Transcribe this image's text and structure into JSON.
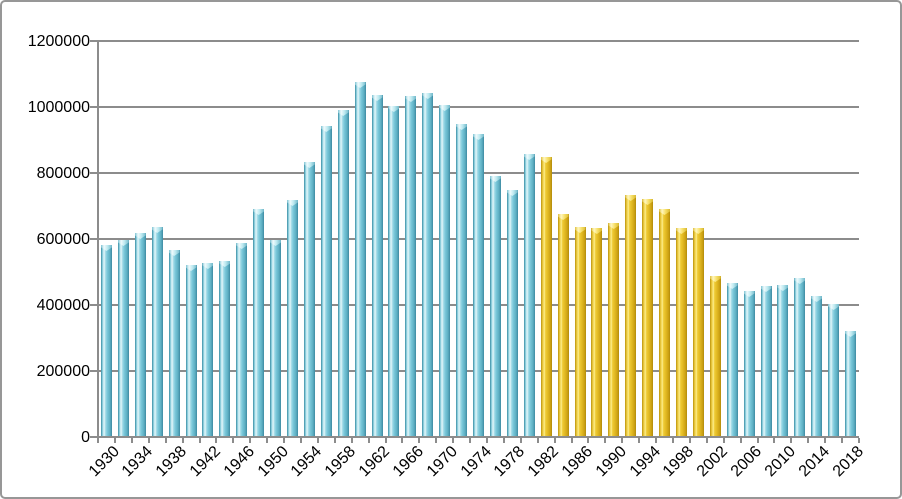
{
  "frame": {
    "background": "#ffffff",
    "border_color": "#979797"
  },
  "chart_data": {
    "type": "bar",
    "title": "",
    "xlabel": "",
    "ylabel": "",
    "x": [
      1930,
      1932,
      1934,
      1936,
      1938,
      1940,
      1942,
      1944,
      1946,
      1948,
      1950,
      1952,
      1954,
      1956,
      1958,
      1960,
      1962,
      1964,
      1966,
      1968,
      1970,
      1972,
      1974,
      1976,
      1978,
      1980,
      1982,
      1984,
      1986,
      1988,
      1990,
      1992,
      1994,
      1996,
      1998,
      2000,
      2002,
      2004,
      2006,
      2008,
      2010,
      2012,
      2014,
      2016,
      2018
    ],
    "values": [
      585000,
      600000,
      620000,
      640000,
      570000,
      525000,
      530000,
      535000,
      590000,
      695000,
      600000,
      720000,
      835000,
      945000,
      995000,
      1080000,
      1040000,
      1005000,
      1035000,
      1045000,
      1010000,
      950000,
      920000,
      795000,
      750000,
      860000,
      850000,
      680000,
      640000,
      635000,
      650000,
      735000,
      725000,
      695000,
      635000,
      635000,
      490000,
      470000,
      445000,
      460000,
      465000,
      485000,
      430000,
      405000,
      325000
    ],
    "highlight_segment": {
      "start_year": 1982,
      "end_year": 2002
    },
    "x_tick_label_step_years": 4,
    "x_tick_labels": [
      "1930",
      "1934",
      "1938",
      "1942",
      "1946",
      "1950",
      "1954",
      "1958",
      "1962",
      "1966",
      "1970",
      "1974",
      "1978",
      "1982",
      "1986",
      "1990",
      "1994",
      "1998",
      "2002",
      "2006",
      "2010",
      "2014",
      "2018"
    ],
    "y_ticks": [
      "1200000",
      "1000000",
      "800000",
      "600000",
      "400000",
      "200000",
      "0"
    ],
    "ylim": [
      0,
      1200000
    ],
    "grid": true,
    "legend": "none",
    "colors": {
      "default_bar": "#7cc9db",
      "highlight_bar": "#efd14c",
      "gridline": "#8c8c8c",
      "axis": "#8c8c8c",
      "text": "#000000"
    }
  }
}
